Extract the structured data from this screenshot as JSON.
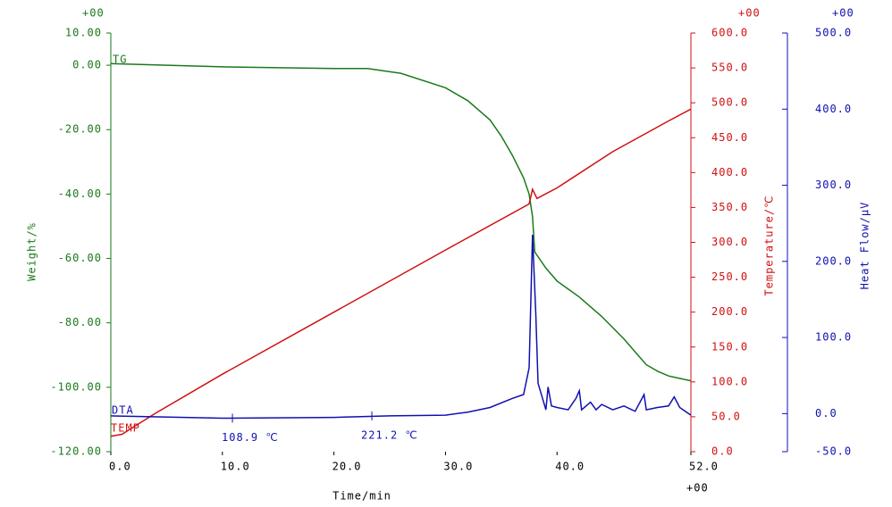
{
  "chart_data": {
    "type": "line",
    "xlabel": "Time/min",
    "ylabel": "Weight/%",
    "y2label": "Temperature/℃",
    "y3label": "Heat Flow/μV",
    "x_exponent": "+00",
    "y_exponent": "+00",
    "y2_exponent": "+00",
    "y3_exponent": "+00",
    "xlim": [
      0,
      52
    ],
    "xticks": [
      {
        "value": 0,
        "label": "0.0"
      },
      {
        "value": 10,
        "label": "10.0"
      },
      {
        "value": 20,
        "label": "20.0"
      },
      {
        "value": 30,
        "label": "30.0"
      },
      {
        "value": 40,
        "label": "40.0"
      },
      {
        "value": 52,
        "label": "52.0"
      }
    ],
    "ylim": [
      -120,
      10
    ],
    "yticks": [
      {
        "value": 10,
        "label": "10.00"
      },
      {
        "value": 0,
        "label": "0.00"
      },
      {
        "value": -20,
        "label": "-20.00"
      },
      {
        "value": -40,
        "label": "-40.00"
      },
      {
        "value": -60,
        "label": "-60.00"
      },
      {
        "value": -80,
        "label": "-80.00"
      },
      {
        "value": -100,
        "label": "-100.00"
      },
      {
        "value": -120,
        "label": "-120.00"
      }
    ],
    "y2lim": [
      0,
      600
    ],
    "y2ticks": [
      {
        "value": 600,
        "label": "600.0"
      },
      {
        "value": 550,
        "label": "550.0"
      },
      {
        "value": 500,
        "label": "500.0"
      },
      {
        "value": 450,
        "label": "450.0"
      },
      {
        "value": 400,
        "label": "400.0"
      },
      {
        "value": 350,
        "label": "350.0"
      },
      {
        "value": 300,
        "label": "300.0"
      },
      {
        "value": 250,
        "label": "250.0"
      },
      {
        "value": 200,
        "label": "200.0"
      },
      {
        "value": 150,
        "label": "150.0"
      },
      {
        "value": 100,
        "label": "100.0"
      },
      {
        "value": 50,
        "label": "50.0"
      },
      {
        "value": 0,
        "label": "0.0"
      }
    ],
    "y3lim": [
      -50,
      500
    ],
    "y3ticks": [
      {
        "value": 500,
        "label": "500.0"
      },
      {
        "value": 400,
        "label": "400.0"
      },
      {
        "value": 300,
        "label": "300.0"
      },
      {
        "value": 200,
        "label": "200.0"
      },
      {
        "value": 100,
        "label": "100.0"
      },
      {
        "value": 0,
        "label": "0.0"
      },
      {
        "value": -50,
        "label": "-50.0"
      }
    ],
    "series": [
      {
        "name": "TG",
        "color": "#1a7a1a",
        "axis": "y",
        "x": [
          0,
          10,
          20,
          23,
          26,
          30,
          32,
          34,
          35,
          36,
          37,
          37.5,
          37.8,
          38,
          39,
          40,
          42,
          44,
          46,
          47,
          48,
          49,
          50,
          52
        ],
        "values": [
          0.5,
          -0.5,
          -1,
          -1,
          -2.5,
          -7,
          -11,
          -17,
          -22,
          -28,
          -35,
          -40,
          -47,
          -58,
          -63,
          -67,
          -72,
          -78,
          -85,
          -89,
          -93,
          -95,
          -96.5,
          -98
        ]
      },
      {
        "name": "TEMP",
        "color": "#d01010",
        "axis": "y2",
        "x": [
          0,
          1,
          2,
          4,
          10,
          20,
          30,
          37.5,
          37.8,
          38.2,
          40,
          45,
          50,
          52
        ],
        "values": [
          22,
          25,
          35,
          55,
          111,
          200,
          289,
          355,
          376,
          363,
          378,
          430,
          474,
          491
        ]
      },
      {
        "name": "DTA",
        "color": "#1010b0",
        "axis": "y3",
        "x": [
          0,
          10,
          20,
          25,
          30,
          32,
          34,
          36,
          37,
          37.5,
          37.8,
          38.1,
          38.3,
          38.7,
          39,
          39.2,
          39.5,
          40,
          41,
          41.7,
          42,
          42.2,
          43,
          43.5,
          44,
          45,
          46,
          47,
          47.8,
          48,
          49,
          50,
          50.5,
          51,
          52
        ],
        "values": [
          -3,
          -6,
          -5,
          -3,
          -2,
          2,
          8,
          20,
          25,
          60,
          235,
          130,
          40,
          20,
          5,
          35,
          10,
          8,
          5,
          20,
          30,
          5,
          15,
          5,
          12,
          5,
          10,
          3,
          25,
          5,
          8,
          10,
          22,
          8,
          -2
        ]
      }
    ],
    "annotations": [
      {
        "text": "108.9 ℃",
        "x": 10.9,
        "y": -6
      },
      {
        "text": "221.2 ℃",
        "x": 23.4,
        "y": -3
      }
    ]
  }
}
